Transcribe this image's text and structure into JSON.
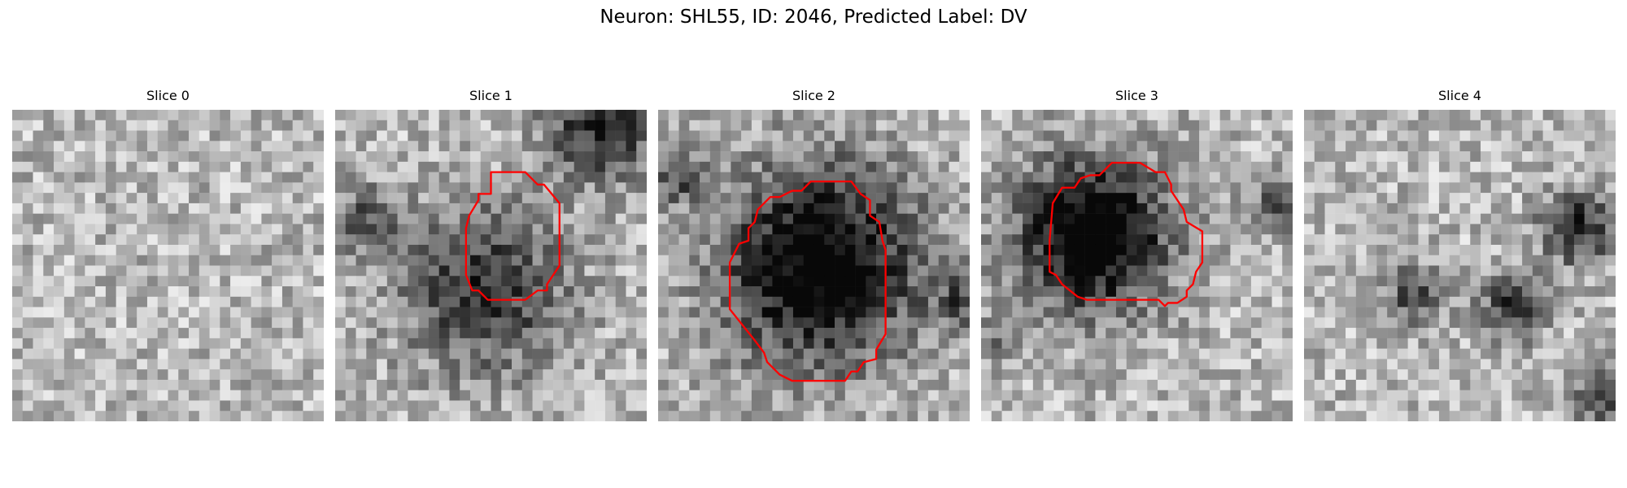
{
  "figure": {
    "title": "Neuron: SHL55, ID: 2046, Predicted Label: DV"
  },
  "contour_color": "#ff0000",
  "slices": [
    {
      "title": "Slice 0",
      "seed": 11,
      "dark_blobs": [],
      "roi": null
    },
    {
      "title": "Slice 1",
      "seed": 23,
      "dark_blobs": [
        [
          0.48,
          0.58,
          0.18,
          0.55
        ],
        [
          0.85,
          0.05,
          0.12,
          0.6
        ],
        [
          0.1,
          0.35,
          0.08,
          0.35
        ]
      ],
      "roi": [
        [
          0.5,
          0.2
        ],
        [
          0.61,
          0.2
        ],
        [
          0.65,
          0.24
        ],
        [
          0.67,
          0.24
        ],
        [
          0.72,
          0.3
        ],
        [
          0.72,
          0.5
        ],
        [
          0.68,
          0.56
        ],
        [
          0.68,
          0.58
        ],
        [
          0.65,
          0.58
        ],
        [
          0.61,
          0.61
        ],
        [
          0.49,
          0.61
        ],
        [
          0.46,
          0.58
        ],
        [
          0.44,
          0.58
        ],
        [
          0.42,
          0.53
        ],
        [
          0.42,
          0.38
        ],
        [
          0.43,
          0.34
        ],
        [
          0.46,
          0.29
        ],
        [
          0.46,
          0.27
        ],
        [
          0.5,
          0.27
        ],
        [
          0.5,
          0.23
        ]
      ]
    },
    {
      "title": "Slice 2",
      "seed": 37,
      "dark_blobs": [
        [
          0.52,
          0.5,
          0.22,
          0.85
        ],
        [
          0.05,
          0.22,
          0.06,
          0.4
        ],
        [
          0.97,
          0.62,
          0.06,
          0.35
        ]
      ],
      "roi": [
        [
          0.43,
          0.26
        ],
        [
          0.46,
          0.26
        ],
        [
          0.49,
          0.23
        ],
        [
          0.62,
          0.23
        ],
        [
          0.65,
          0.27
        ],
        [
          0.68,
          0.29
        ],
        [
          0.68,
          0.34
        ],
        [
          0.71,
          0.36
        ],
        [
          0.72,
          0.42
        ],
        [
          0.73,
          0.45
        ],
        [
          0.73,
          0.72
        ],
        [
          0.7,
          0.77
        ],
        [
          0.7,
          0.8
        ],
        [
          0.66,
          0.81
        ],
        [
          0.64,
          0.84
        ],
        [
          0.62,
          0.84
        ],
        [
          0.6,
          0.87
        ],
        [
          0.43,
          0.87
        ],
        [
          0.39,
          0.85
        ],
        [
          0.35,
          0.81
        ],
        [
          0.34,
          0.78
        ],
        [
          0.31,
          0.74
        ],
        [
          0.23,
          0.64
        ],
        [
          0.23,
          0.49
        ],
        [
          0.26,
          0.43
        ],
        [
          0.29,
          0.42
        ],
        [
          0.29,
          0.38
        ],
        [
          0.31,
          0.36
        ],
        [
          0.32,
          0.32
        ],
        [
          0.35,
          0.29
        ],
        [
          0.36,
          0.28
        ],
        [
          0.39,
          0.28
        ]
      ]
    },
    {
      "title": "Slice 3",
      "seed": 41,
      "dark_blobs": [
        [
          0.36,
          0.4,
          0.17,
          0.9
        ],
        [
          0.95,
          0.3,
          0.06,
          0.4
        ],
        [
          0.05,
          0.75,
          0.05,
          0.3
        ]
      ],
      "roi": [
        [
          0.42,
          0.17
        ],
        [
          0.51,
          0.17
        ],
        [
          0.56,
          0.2
        ],
        [
          0.59,
          0.2
        ],
        [
          0.61,
          0.24
        ],
        [
          0.61,
          0.26
        ],
        [
          0.65,
          0.32
        ],
        [
          0.66,
          0.36
        ],
        [
          0.71,
          0.39
        ],
        [
          0.71,
          0.49
        ],
        [
          0.69,
          0.52
        ],
        [
          0.68,
          0.56
        ],
        [
          0.66,
          0.58
        ],
        [
          0.66,
          0.6
        ],
        [
          0.63,
          0.62
        ],
        [
          0.6,
          0.62
        ],
        [
          0.59,
          0.63
        ],
        [
          0.57,
          0.61
        ],
        [
          0.34,
          0.61
        ],
        [
          0.31,
          0.6
        ],
        [
          0.26,
          0.56
        ],
        [
          0.24,
          0.53
        ],
        [
          0.22,
          0.52
        ],
        [
          0.22,
          0.42
        ],
        [
          0.23,
          0.3
        ],
        [
          0.26,
          0.25
        ],
        [
          0.3,
          0.25
        ],
        [
          0.32,
          0.22
        ],
        [
          0.35,
          0.21
        ],
        [
          0.38,
          0.21
        ]
      ]
    },
    {
      "title": "Slice 4",
      "seed": 53,
      "dark_blobs": [
        [
          0.88,
          0.38,
          0.08,
          0.6
        ],
        [
          0.67,
          0.63,
          0.07,
          0.55
        ],
        [
          0.35,
          0.6,
          0.07,
          0.4
        ],
        [
          0.96,
          0.92,
          0.06,
          0.5
        ]
      ],
      "roi": null
    }
  ]
}
